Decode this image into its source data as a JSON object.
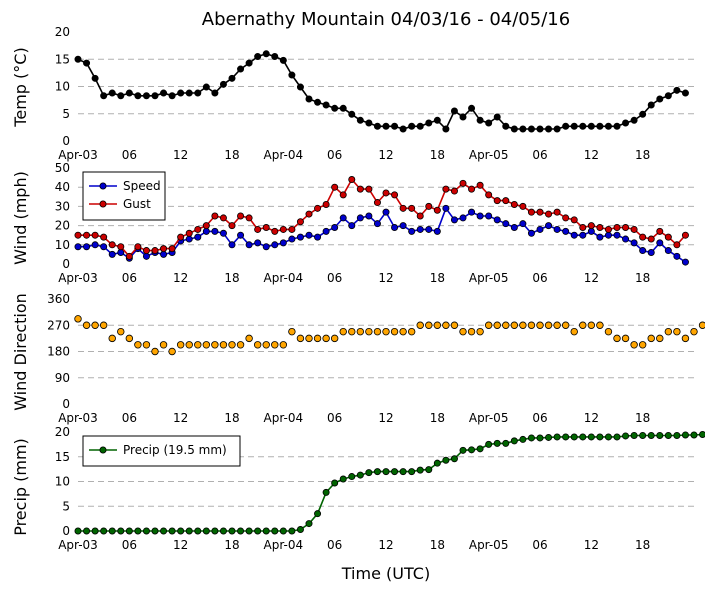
{
  "figure": {
    "title": "Abernathy Mountain 04/03/16 - 04/05/16",
    "xlabel": "Time (UTC)"
  },
  "chart_data": [
    {
      "type": "line",
      "ylabel": "Temp (°C)",
      "ylim": [
        0,
        20
      ],
      "yticks": [
        "0",
        "5",
        "10",
        "15",
        "20"
      ],
      "xticks": [
        "Apr-03",
        "06",
        "12",
        "18",
        "Apr-04",
        "06",
        "12",
        "18",
        "Apr-05",
        "06",
        "12",
        "18"
      ],
      "x_hours": [
        0,
        1,
        2,
        3,
        4,
        5,
        6,
        7,
        8,
        9,
        10,
        11,
        12,
        13,
        14,
        15,
        16,
        17,
        18,
        19,
        20,
        21,
        22,
        23,
        24,
        25,
        26,
        27,
        28,
        29,
        30,
        31,
        32,
        33,
        34,
        35,
        36,
        37,
        38,
        39,
        40,
        41,
        42,
        43,
        44,
        45,
        46,
        47,
        48,
        49,
        50,
        51,
        52,
        53,
        54,
        55,
        56,
        57,
        58,
        59,
        60,
        61,
        62,
        63,
        64,
        65,
        66,
        67,
        68,
        69,
        70,
        71,
        72
      ],
      "grid": "horizontal dashed",
      "series": [
        {
          "color": "#000000",
          "values": [
            15,
            14.3,
            11.5,
            8.3,
            8.8,
            8.3,
            8.8,
            8.3,
            8.3,
            8.3,
            8.8,
            8.3,
            8.8,
            8.8,
            8.8,
            9.9,
            8.8,
            10.4,
            11.5,
            13.2,
            14.3,
            15.5,
            16,
            15.5,
            14.8,
            12.1,
            9.9,
            7.7,
            7.1,
            6.6,
            6,
            6,
            4.9,
            3.8,
            3.3,
            2.7,
            2.7,
            2.7,
            2.2,
            2.7,
            2.7,
            3.3,
            3.8,
            2.2,
            5.5,
            4.4,
            6,
            3.8,
            3.3,
            4.4,
            2.7,
            2.2,
            2.2,
            2.2,
            2.2,
            2.2,
            2.2,
            2.7,
            2.7,
            2.7,
            2.7,
            2.7,
            2.7,
            2.7,
            3.3,
            3.8,
            4.9,
            6.6,
            7.7,
            8.3,
            9.3,
            8.8
          ]
        }
      ]
    },
    {
      "type": "line",
      "ylabel": "Wind (mph)",
      "ylim": [
        0,
        50
      ],
      "yticks": [
        "0",
        "10",
        "20",
        "30",
        "40",
        "50"
      ],
      "xticks": [
        "Apr-03",
        "06",
        "12",
        "18",
        "Apr-04",
        "06",
        "12",
        "18",
        "Apr-05",
        "06",
        "12",
        "18"
      ],
      "grid": "horizontal dashed",
      "legend": "top-left",
      "series": [
        {
          "name": "Speed",
          "color": "#0000cc",
          "values": [
            9,
            9,
            10,
            9,
            5,
            6,
            3,
            8,
            4,
            6,
            5,
            6,
            12,
            13,
            14,
            17,
            17,
            16,
            10,
            15,
            10,
            11,
            9,
            10,
            11,
            13,
            14,
            15,
            14,
            17,
            19,
            24,
            20,
            24,
            25,
            21,
            27,
            19,
            20,
            17,
            18,
            18,
            17,
            29,
            23,
            24,
            27,
            25,
            25,
            23,
            21,
            19,
            21,
            16,
            18,
            20,
            18,
            17,
            15,
            15,
            17,
            14,
            15,
            15,
            13,
            11,
            7,
            6,
            11,
            7,
            4,
            1
          ]
        },
        {
          "name": "Gust",
          "color": "#cc0000",
          "values": [
            15,
            15,
            15,
            14,
            10,
            9,
            4,
            9,
            7,
            7,
            8,
            8,
            14,
            16,
            18,
            20,
            25,
            24,
            20,
            25,
            24,
            18,
            19,
            17,
            18,
            18,
            22,
            26,
            29,
            31,
            40,
            36,
            44,
            39,
            39,
            32,
            37,
            36,
            29,
            29,
            25,
            30,
            28,
            39,
            38,
            42,
            39,
            41,
            36,
            33,
            33,
            31,
            30,
            27,
            27,
            26,
            27,
            24,
            23,
            19,
            20,
            19,
            18,
            19,
            19,
            18,
            14,
            13,
            17,
            14,
            10,
            15
          ]
        }
      ]
    },
    {
      "type": "scatter",
      "ylabel": "Wind Direction",
      "ylim": [
        0,
        360
      ],
      "yticks": [
        "0",
        "90",
        "180",
        "270",
        "360"
      ],
      "xticks": [
        "Apr-03",
        "06",
        "12",
        "18",
        "Apr-04",
        "06",
        "12",
        "18",
        "Apr-05",
        "06",
        "12",
        "18"
      ],
      "grid": "horizontal dashed",
      "series": [
        {
          "color": "#ffa500",
          "values": [
            292,
            270,
            270,
            270,
            225,
            248,
            225,
            203,
            203,
            180,
            203,
            180,
            203,
            203,
            203,
            203,
            203,
            203,
            203,
            203,
            225,
            203,
            203,
            203,
            203,
            248,
            225,
            225,
            225,
            225,
            225,
            248,
            248,
            248,
            248,
            248,
            248,
            248,
            248,
            248,
            270,
            270,
            270,
            270,
            270,
            248,
            248,
            248,
            270,
            270,
            270,
            270,
            270,
            270,
            270,
            270,
            270,
            270,
            248,
            270,
            270,
            270,
            248,
            225,
            225,
            203,
            203,
            225,
            225,
            248,
            248,
            225,
            248,
            270
          ]
        }
      ]
    },
    {
      "type": "line",
      "ylabel": "Precip (mm)",
      "ylim": [
        0,
        20
      ],
      "yticks": [
        "0",
        "5",
        "10",
        "15",
        "20"
      ],
      "xticks": [
        "Apr-03",
        "06",
        "12",
        "18",
        "Apr-04",
        "06",
        "12",
        "18",
        "Apr-05",
        "06",
        "12",
        "18"
      ],
      "grid": "horizontal dashed",
      "legend": "top-left",
      "series": [
        {
          "name": "Precip (19.5 mm)",
          "color": "#006400",
          "values": [
            0,
            0,
            0,
            0,
            0,
            0,
            0,
            0,
            0,
            0,
            0,
            0,
            0,
            0,
            0,
            0,
            0,
            0,
            0,
            0,
            0,
            0,
            0,
            0,
            0,
            0,
            0.3,
            1.5,
            3.5,
            7.8,
            9.7,
            10.5,
            11,
            11.3,
            11.8,
            12,
            12,
            12,
            12,
            12,
            12.3,
            12.4,
            13.7,
            14.3,
            14.6,
            16.3,
            16.4,
            16.6,
            17.5,
            17.7,
            17.7,
            18.2,
            18.5,
            18.8,
            18.8,
            18.9,
            19,
            19,
            19,
            19,
            19,
            19,
            19,
            19,
            19.2,
            19.3,
            19.3,
            19.3,
            19.3,
            19.3,
            19.3,
            19.4,
            19.4,
            19.5
          ]
        }
      ]
    }
  ]
}
